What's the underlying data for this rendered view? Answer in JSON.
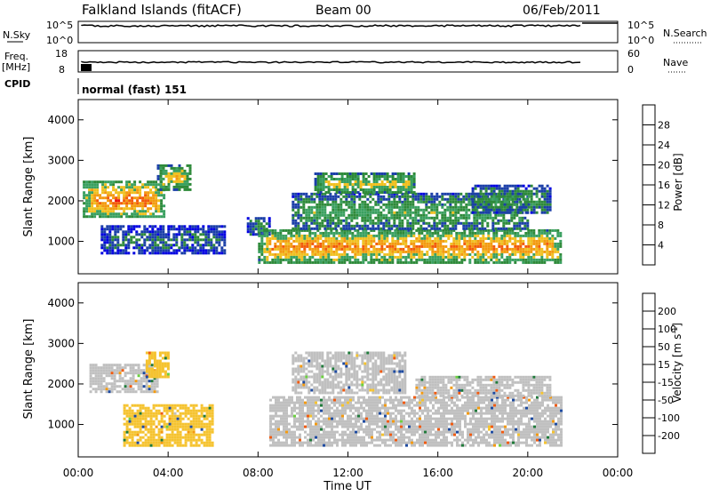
{
  "header": {
    "title": "Falkland Islands (fitACF)",
    "beam": "Beam 00",
    "date": "06/Feb/2011"
  },
  "left_labels": {
    "nsky": "N.Sky",
    "freq": "Freq.",
    "mhz": "[MHz]",
    "cpid": "CPID"
  },
  "right_labels": {
    "nsearch": "N.Search",
    "nave": "Nave"
  },
  "mode_text": "normal (fast) 151",
  "noise_axis": {
    "left_ticks": [
      "10^5",
      "10^0"
    ],
    "right_ticks": [
      "10^5",
      "10^0"
    ]
  },
  "freq_axis": {
    "left_ticks": [
      "18",
      "8"
    ],
    "right_ticks": [
      "60",
      "0"
    ]
  },
  "time_axis": {
    "label": "Time UT",
    "ticks": [
      "00:00",
      "04:00",
      "08:00",
      "12:00",
      "16:00",
      "20:00",
      "00:00"
    ]
  },
  "colors": {
    "power_scale": [
      "#0000e0",
      "#1b3fa8",
      "#2e8a3a",
      "#3aa060",
      "#f0c020",
      "#f39a10",
      "#f25a0a",
      "#e81010"
    ],
    "velocity_scale": [
      "#1c2fb0",
      "#1d4aa0",
      "#1f7a3a",
      "#6cd040",
      "#c0c0c0",
      "#f5c330",
      "#f39a10",
      "#f05a10",
      "#e01010"
    ]
  },
  "chart_data": [
    {
      "type": "heatmap",
      "panel": "power",
      "ylabel": "Slant Range [km]",
      "xlabel": "",
      "xlim": [
        0,
        24
      ],
      "ylim": [
        200,
        4500
      ],
      "y_ticks": [
        1000,
        2000,
        3000,
        4000
      ],
      "colorbar": {
        "label": "Power [dB]",
        "ticks": [
          4,
          8,
          12,
          16,
          20,
          24,
          28
        ]
      },
      "regions": [
        {
          "x": [
            0.2,
            3.8
          ],
          "y": [
            1600,
            2500
          ],
          "level": 26
        },
        {
          "x": [
            3.5,
            5.0
          ],
          "y": [
            2300,
            2900
          ],
          "level": 20
        },
        {
          "x": [
            1.0,
            6.5
          ],
          "y": [
            700,
            1400
          ],
          "level": 8
        },
        {
          "x": [
            7.5,
            8.5
          ],
          "y": [
            1200,
            1600
          ],
          "level": 12
        },
        {
          "x": [
            8.0,
            21.5
          ],
          "y": [
            500,
            1300
          ],
          "level": 24
        },
        {
          "x": [
            9.5,
            20.0
          ],
          "y": [
            1300,
            2200
          ],
          "level": 14
        },
        {
          "x": [
            10.5,
            15.0
          ],
          "y": [
            2200,
            2700
          ],
          "level": 18
        },
        {
          "x": [
            17.5,
            21.0
          ],
          "y": [
            1700,
            2400
          ],
          "level": 12
        }
      ]
    },
    {
      "type": "heatmap",
      "panel": "velocity",
      "ylabel": "Slant Range [km]",
      "xlabel": "Time UT",
      "xlim": [
        0,
        24
      ],
      "ylim": [
        200,
        4500
      ],
      "y_ticks": [
        1000,
        2000,
        3000,
        4000
      ],
      "colorbar": {
        "label": "Velocity [m s^-1]",
        "ticks": [
          200,
          100,
          50,
          15,
          -15,
          -50,
          -100,
          -200
        ]
      },
      "regions": [
        {
          "x": [
            0.5,
            3.5
          ],
          "y": [
            1800,
            2500
          ],
          "level": 0
        },
        {
          "x": [
            3.0,
            4.0
          ],
          "y": [
            2200,
            2800
          ],
          "level": -50
        },
        {
          "x": [
            2.0,
            6.0
          ],
          "y": [
            500,
            1500
          ],
          "level": -30
        },
        {
          "x": [
            8.5,
            21.5
          ],
          "y": [
            500,
            1700
          ],
          "level": 0
        },
        {
          "x": [
            9.5,
            14.5
          ],
          "y": [
            1800,
            2800
          ],
          "level": 0
        },
        {
          "x": [
            15.0,
            21.0
          ],
          "y": [
            1700,
            2200
          ],
          "level": 0
        }
      ]
    }
  ]
}
